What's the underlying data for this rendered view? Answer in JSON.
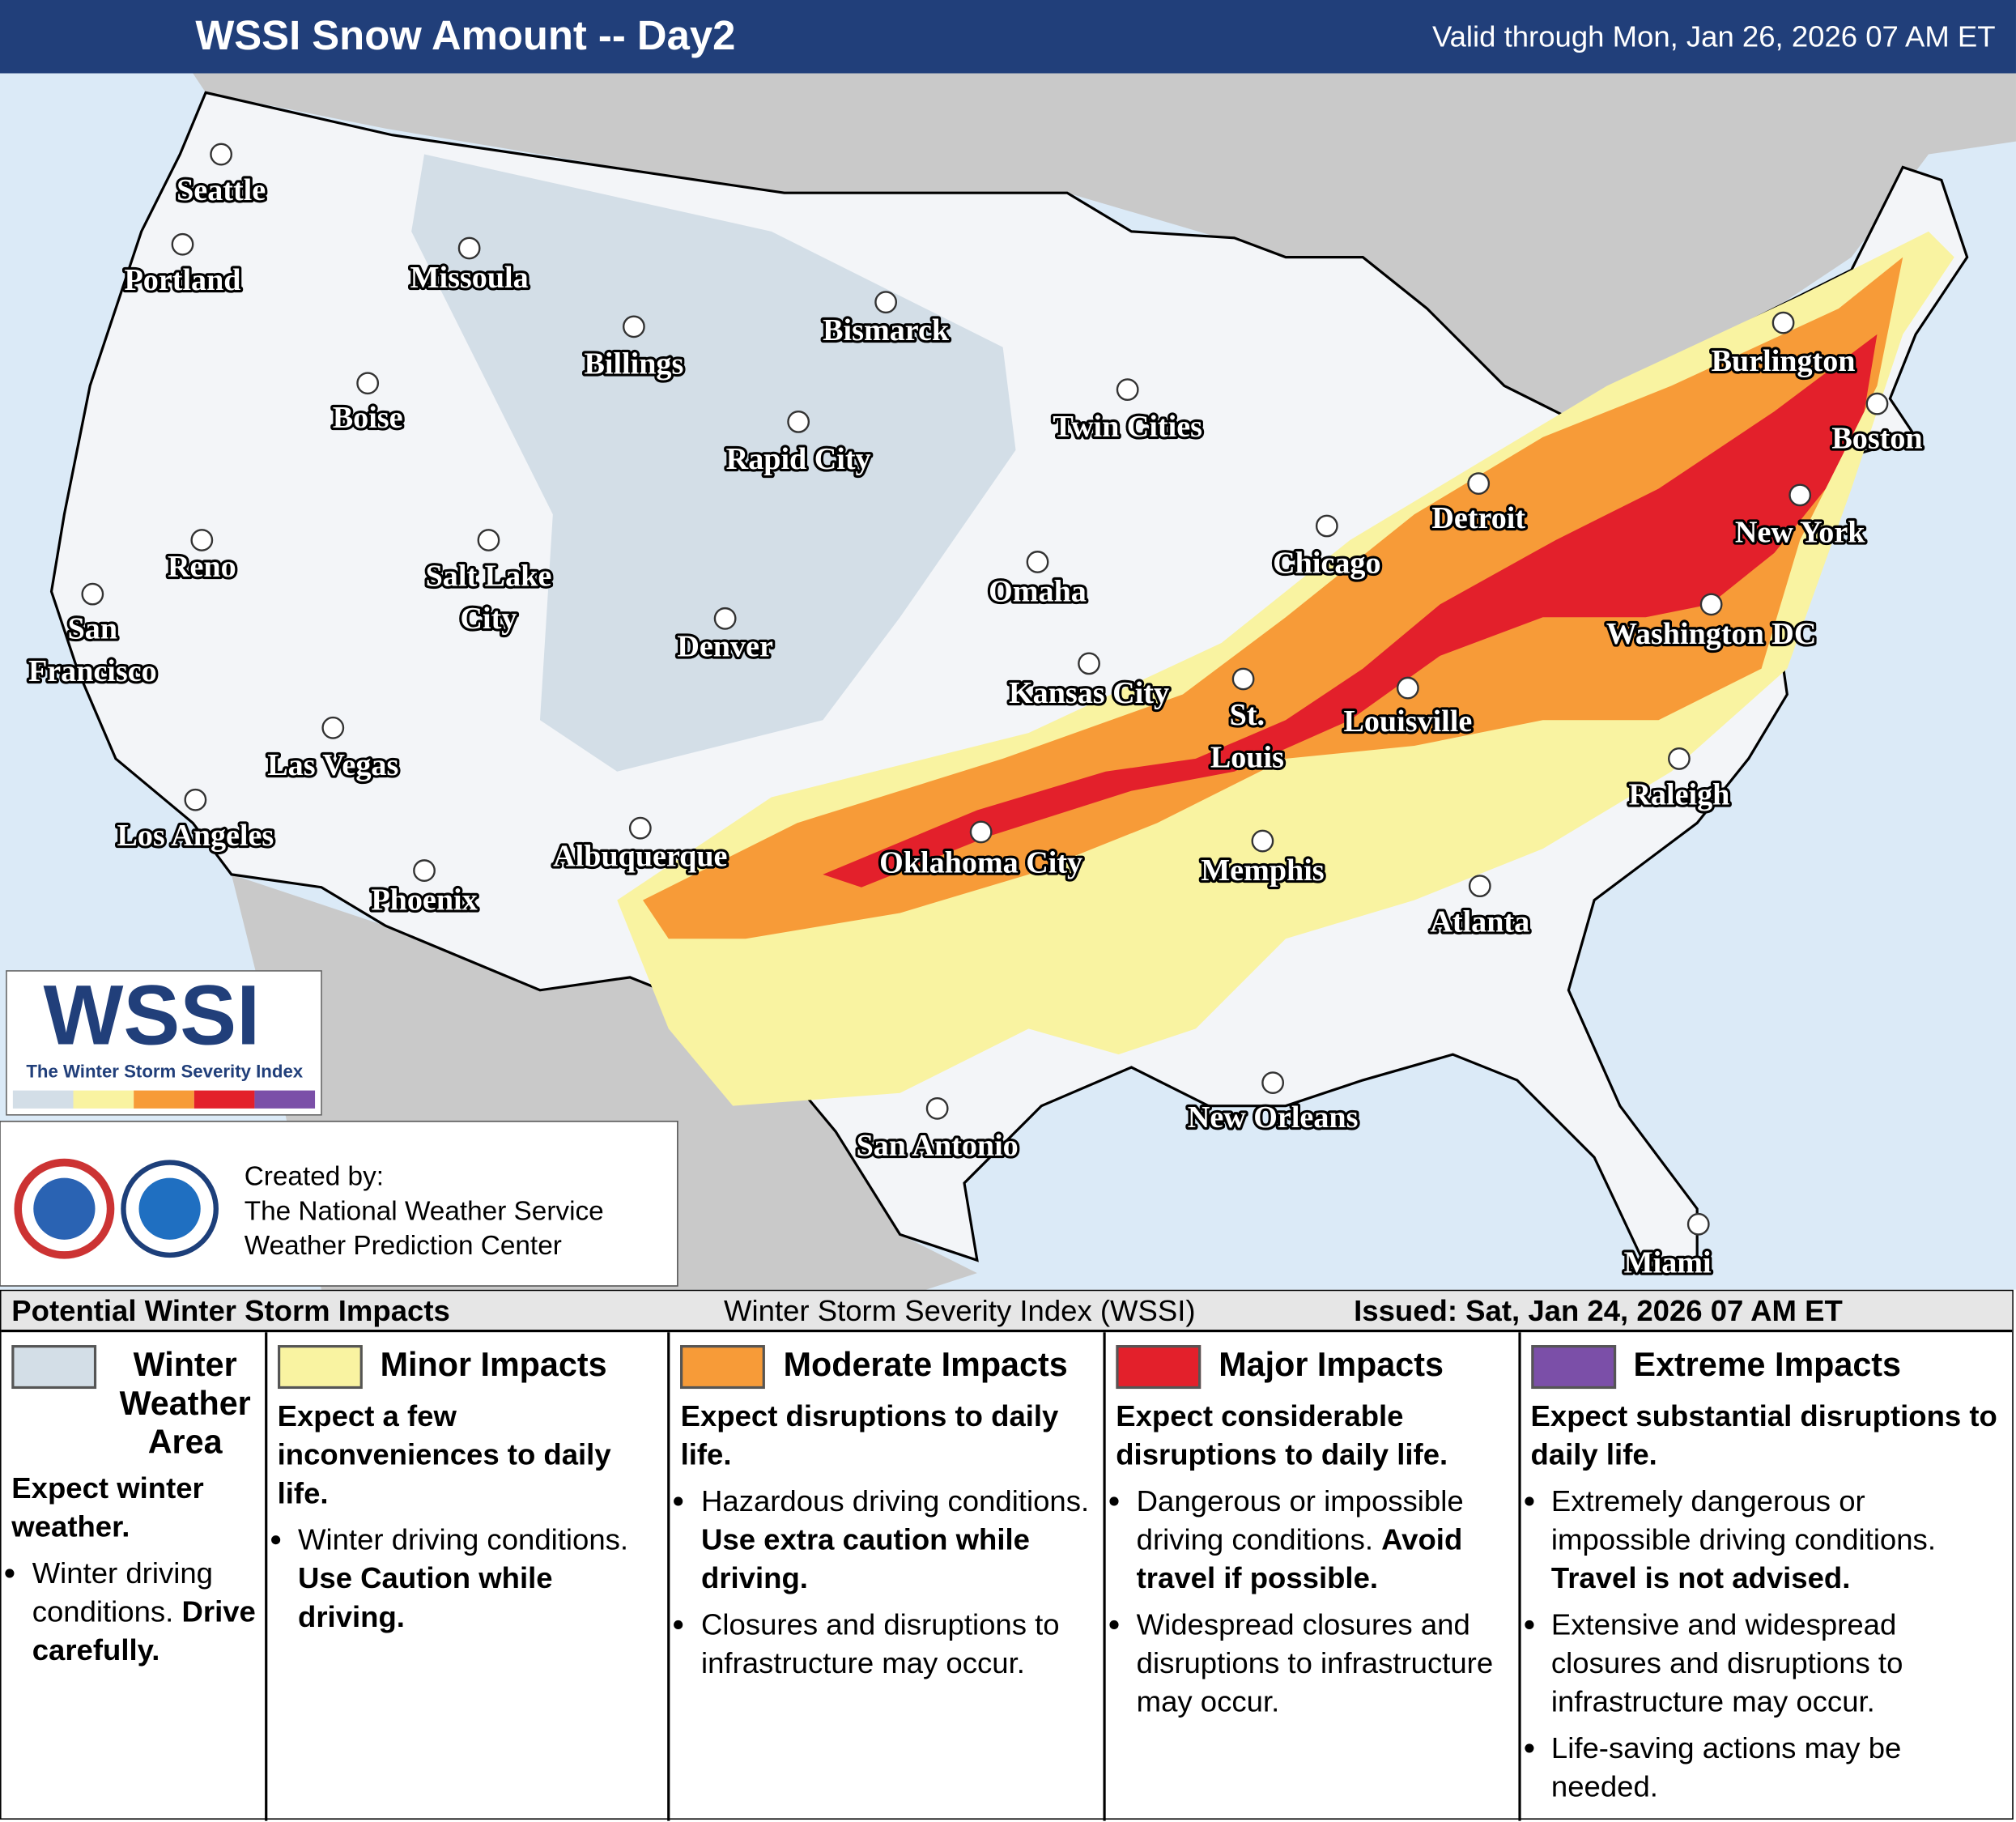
{
  "header": {
    "title": "WSSI Snow Amount -- Day2",
    "valid": "Valid through Mon, Jan 26, 2026 07 AM ET"
  },
  "cities": [
    {
      "lines": [
        "Seattle"
      ]
    },
    {
      "lines": [
        "Portland"
      ]
    },
    {
      "lines": [
        "Missoula"
      ]
    },
    {
      "lines": [
        "Billings"
      ]
    },
    {
      "lines": [
        "Bismarck"
      ]
    },
    {
      "lines": [
        "Boise"
      ]
    },
    {
      "lines": [
        "Rapid City"
      ]
    },
    {
      "lines": [
        "Twin Cities"
      ]
    },
    {
      "lines": [
        "Burlington"
      ]
    },
    {
      "lines": [
        "Boston"
      ]
    },
    {
      "lines": [
        "Reno"
      ]
    },
    {
      "lines": [
        "Salt Lake",
        "City"
      ]
    },
    {
      "lines": [
        "Detroit"
      ]
    },
    {
      "lines": [
        "Chicago"
      ]
    },
    {
      "lines": [
        "New York"
      ]
    },
    {
      "lines": [
        "San",
        "Francisco"
      ]
    },
    {
      "lines": [
        "Omaha"
      ]
    },
    {
      "lines": [
        "Denver"
      ]
    },
    {
      "lines": [
        "Washington DC"
      ]
    },
    {
      "lines": [
        "Kansas City"
      ]
    },
    {
      "lines": [
        "St.",
        "Louis"
      ]
    },
    {
      "lines": [
        "Louisville"
      ]
    },
    {
      "lines": [
        "Las Vegas"
      ]
    },
    {
      "lines": [
        "Raleigh"
      ]
    },
    {
      "lines": [
        "Los Angeles"
      ]
    },
    {
      "lines": [
        "Albuquerque"
      ]
    },
    {
      "lines": [
        "Oklahoma City"
      ]
    },
    {
      "lines": [
        "Memphis"
      ]
    },
    {
      "lines": [
        "Phoenix"
      ]
    },
    {
      "lines": [
        "Atlanta"
      ]
    },
    {
      "lines": [
        "New Orleans"
      ]
    },
    {
      "lines": [
        "San Antonio"
      ]
    },
    {
      "lines": [
        "Miami"
      ]
    }
  ],
  "logo": {
    "title": "WSSI",
    "subtitle": "The Winter Storm Severity Index"
  },
  "credits": {
    "lines": [
      "Created by:",
      "The National Weather Service",
      "Weather Prediction Center"
    ]
  },
  "legend": {
    "title": "Potential Winter Storm Impacts",
    "index": "Winter Storm Severity Index (WSSI)",
    "issued": "Issued: Sat, Jan 24, 2026 07 AM ET",
    "levels": [
      {
        "name": "Winter Weather Area",
        "color": "#d3dee7",
        "summary": "Expect winter weather.",
        "bullets": [
          {
            "text": "Winter driving conditions.",
            "bold": "Drive carefully."
          }
        ]
      },
      {
        "name": "Minor Impacts",
        "color": "#f9f3a1",
        "summary": "Expect a few inconveniences to daily life.",
        "bullets": [
          {
            "text": "Winter driving conditions.",
            "bold": "Use Caution while driving."
          }
        ]
      },
      {
        "name": "Moderate Impacts",
        "color": "#f79b38",
        "summary": "Expect disruptions to daily life.",
        "bullets": [
          {
            "text": "Hazardous driving conditions.",
            "bold": "Use extra caution while driving."
          },
          {
            "text": "Closures and disruptions to infrastructure may occur."
          }
        ]
      },
      {
        "name": "Major Impacts",
        "color": "#e3202b",
        "summary": "Expect considerable disruptions to daily life.",
        "bullets": [
          {
            "text": "Dangerous or impossible driving conditions.",
            "bold": "Avoid travel if possible."
          },
          {
            "text": "Widespread closures and disruptions to infrastructure may occur."
          }
        ]
      },
      {
        "name": "Extreme Impacts",
        "color": "#7b4fa8",
        "summary": "Expect substantial disruptions to daily life.",
        "bullets": [
          {
            "text": "Extremely dangerous or impossible driving conditions.",
            "bold": "Travel is not advised."
          },
          {
            "text": "Extensive and widespread closures and disruptions to infrastructure may occur."
          },
          {
            "text": "Life-saving actions may be needed."
          }
        ]
      }
    ]
  }
}
